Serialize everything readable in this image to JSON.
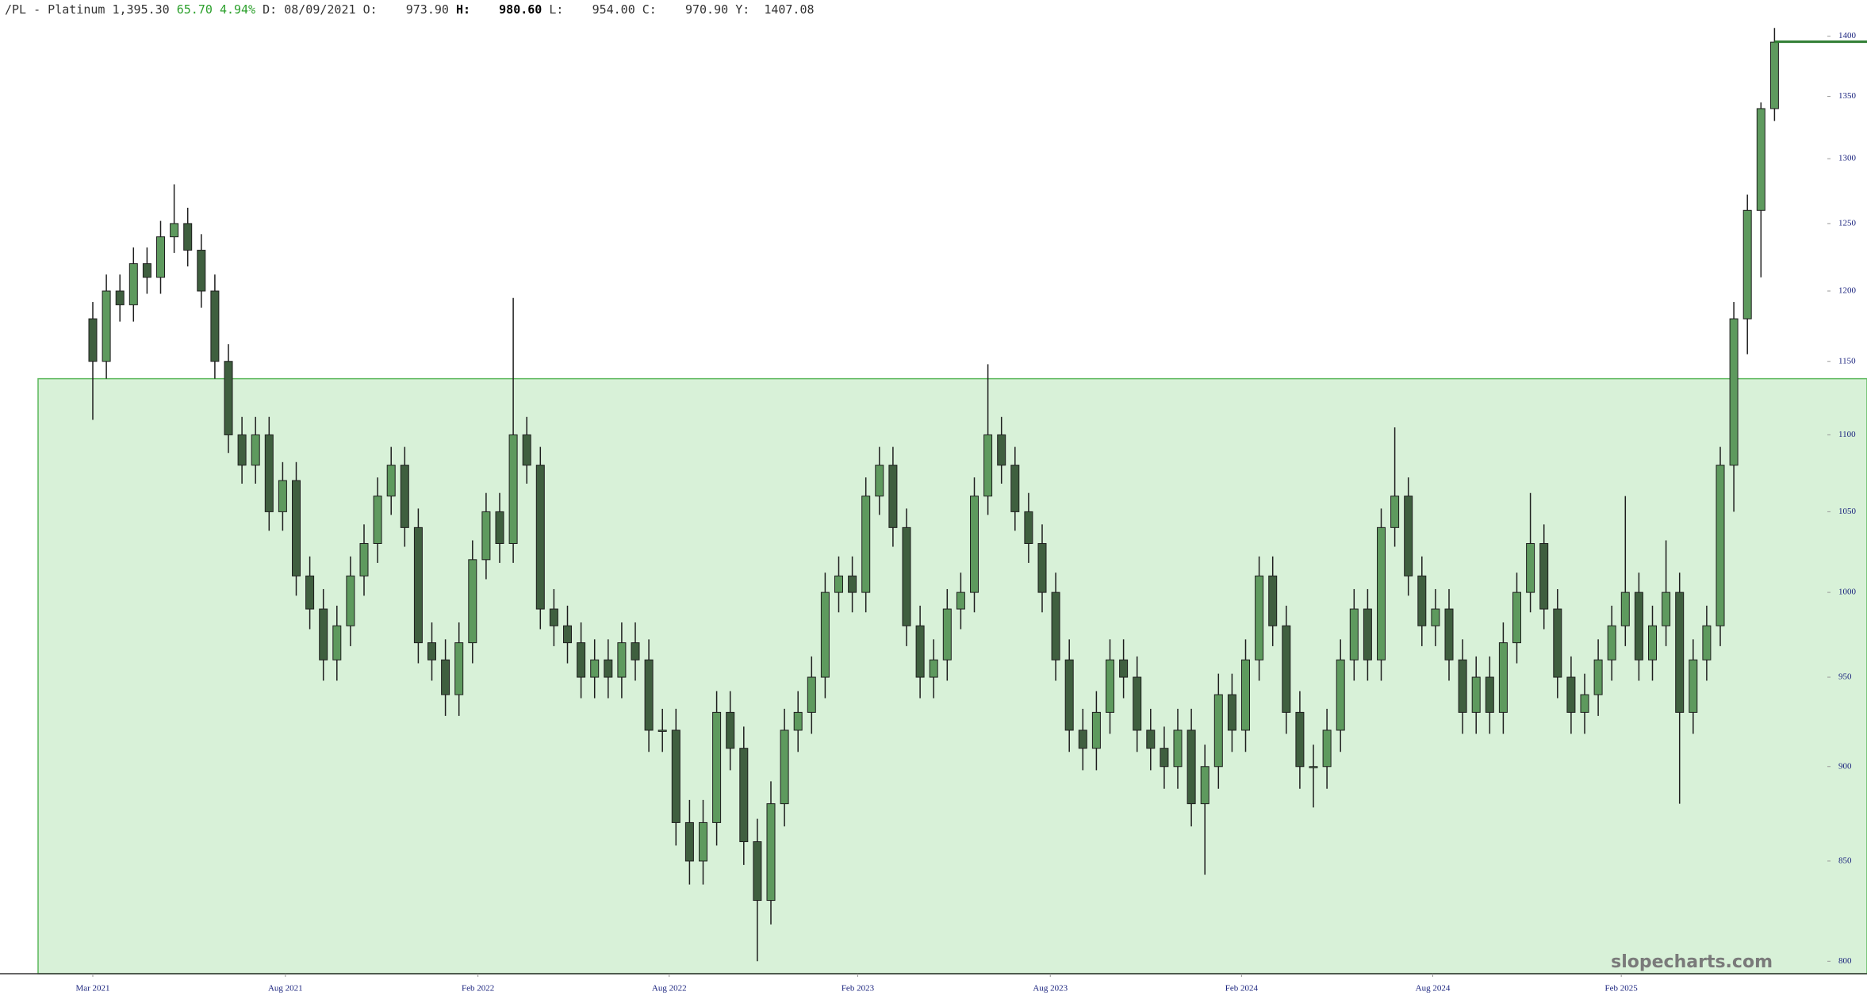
{
  "header": {
    "symbol": "/PL - Platinum",
    "last": "1,395.30",
    "change": "65.70",
    "change_pct": "4.94%",
    "fields": [
      {
        "label": "D:",
        "value": "08/09/2021"
      },
      {
        "label": "O:",
        "value": "973.90"
      },
      {
        "label": "H:",
        "value": "980.60"
      },
      {
        "label": "L:",
        "value": "954.00"
      },
      {
        "label": "C:",
        "value": "970.90"
      },
      {
        "label": "Y:",
        "value": "1407.08"
      }
    ]
  },
  "chart_data": {
    "type": "candlestick",
    "open": [
      1180,
      1150,
      1200,
      1190,
      1220,
      1210,
      1240,
      1250,
      1230,
      1200,
      1150,
      1100,
      1080,
      1100,
      1050,
      1070,
      1010,
      990,
      960,
      980,
      1010,
      1030,
      1060,
      1080,
      1040,
      970,
      960,
      940,
      970,
      1020,
      1050,
      1030,
      1100,
      1080,
      990,
      980,
      970,
      950,
      960,
      950,
      970,
      960,
      920,
      920,
      870,
      850,
      870,
      930,
      910,
      860,
      830,
      880,
      920,
      930,
      950,
      1000,
      1010,
      1000,
      1060,
      1080,
      1040,
      980,
      950,
      960,
      990,
      1000,
      1060,
      1100,
      1080,
      1050,
      1030,
      1000,
      960,
      920,
      910,
      930,
      960,
      950,
      920,
      910,
      900,
      920,
      880,
      900,
      940,
      920,
      960,
      1010,
      980,
      930,
      900,
      900,
      920,
      960,
      990,
      960,
      1040,
      1060,
      1010,
      980,
      990,
      960,
      930,
      950,
      930,
      970,
      1000,
      1030,
      990,
      950,
      930,
      940,
      960,
      980,
      1000,
      960,
      980,
      1000,
      930,
      960,
      980,
      1080,
      1180,
      1260,
      1340
    ],
    "high": [
      1192,
      1212,
      1212,
      1232,
      1232,
      1252,
      1280,
      1262,
      1242,
      1212,
      1162,
      1112,
      1112,
      1112,
      1082,
      1082,
      1022,
      1002,
      992,
      1022,
      1042,
      1072,
      1092,
      1092,
      1052,
      982,
      972,
      982,
      1032,
      1062,
      1062,
      1195,
      1112,
      1092,
      1002,
      992,
      982,
      972,
      972,
      982,
      982,
      972,
      932,
      932,
      882,
      882,
      942,
      942,
      922,
      872,
      892,
      932,
      942,
      962,
      1012,
      1022,
      1022,
      1072,
      1092,
      1092,
      1052,
      992,
      972,
      1002,
      1012,
      1072,
      1148,
      1112,
      1092,
      1062,
      1042,
      1012,
      972,
      932,
      942,
      972,
      972,
      962,
      932,
      922,
      932,
      932,
      912,
      952,
      952,
      972,
      1022,
      1022,
      992,
      942,
      912,
      932,
      972,
      1002,
      1002,
      1052,
      1105,
      1072,
      1022,
      1002,
      1002,
      972,
      962,
      962,
      982,
      1012,
      1062,
      1042,
      1002,
      962,
      952,
      972,
      992,
      1060,
      1012,
      992,
      1032,
      1012,
      972,
      992,
      1092,
      1192,
      1272,
      1345,
      1407
    ],
    "low": [
      1110,
      1138,
      1178,
      1178,
      1198,
      1198,
      1228,
      1218,
      1188,
      1138,
      1088,
      1068,
      1068,
      1038,
      1038,
      998,
      978,
      948,
      948,
      968,
      998,
      1018,
      1048,
      1028,
      958,
      948,
      928,
      928,
      958,
      1008,
      1018,
      1018,
      1068,
      978,
      968,
      958,
      938,
      938,
      938,
      938,
      948,
      908,
      908,
      858,
      838,
      838,
      858,
      898,
      848,
      800,
      818,
      868,
      908,
      918,
      938,
      988,
      988,
      988,
      1048,
      1028,
      968,
      938,
      938,
      948,
      978,
      988,
      1048,
      1068,
      1038,
      1018,
      988,
      948,
      908,
      898,
      898,
      918,
      938,
      908,
      898,
      888,
      888,
      868,
      843,
      888,
      908,
      908,
      948,
      968,
      918,
      888,
      878,
      888,
      908,
      948,
      948,
      948,
      1028,
      998,
      968,
      968,
      948,
      918,
      918,
      918,
      918,
      958,
      988,
      978,
      938,
      918,
      918,
      928,
      948,
      968,
      948,
      948,
      968,
      880,
      918,
      948,
      968,
      1050,
      1155,
      1210,
      1330
    ],
    "close": [
      1150,
      1200,
      1190,
      1220,
      1210,
      1240,
      1250,
      1230,
      1200,
      1150,
      1100,
      1080,
      1100,
      1050,
      1070,
      1010,
      990,
      960,
      980,
      1010,
      1030,
      1060,
      1080,
      1040,
      970,
      960,
      940,
      970,
      1020,
      1050,
      1030,
      1100,
      1080,
      990,
      980,
      970,
      950,
      960,
      950,
      970,
      960,
      920,
      920,
      870,
      850,
      870,
      930,
      910,
      860,
      830,
      880,
      920,
      930,
      950,
      1000,
      1010,
      1000,
      1060,
      1080,
      1040,
      980,
      950,
      960,
      990,
      1000,
      1060,
      1100,
      1080,
      1050,
      1030,
      1000,
      960,
      920,
      910,
      930,
      960,
      950,
      920,
      910,
      900,
      920,
      880,
      900,
      940,
      920,
      960,
      1010,
      980,
      930,
      900,
      900,
      920,
      960,
      990,
      960,
      1040,
      1060,
      1010,
      980,
      990,
      960,
      930,
      950,
      930,
      970,
      1000,
      1030,
      990,
      950,
      930,
      940,
      960,
      980,
      1000,
      960,
      980,
      1000,
      930,
      960,
      980,
      1080,
      1180,
      1260,
      1340,
      1395
    ],
    "up_color": "#5e9a5e",
    "down_color": "#3f5f3f",
    "wick_color": "#1e1e1e",
    "ylim": [
      794,
      1431
    ],
    "log_scale": true,
    "yticks": [
      800,
      850,
      900,
      950,
      1000,
      1050,
      1100,
      1150,
      1200,
      1250,
      1300,
      1350,
      1400
    ],
    "xticks": [
      {
        "value": 0,
        "label": "Mar 2021"
      },
      {
        "value": 14.2,
        "label": "Aug 2021"
      },
      {
        "value": 28.4,
        "label": "Feb 2022"
      },
      {
        "value": 42.5,
        "label": "Aug 2022"
      },
      {
        "value": 56.4,
        "label": "Feb 2023"
      },
      {
        "value": 70.6,
        "label": "Aug 2023"
      },
      {
        "value": 84.7,
        "label": "Feb 2024"
      },
      {
        "value": 98.8,
        "label": "Aug 2024"
      },
      {
        "value": 112.7,
        "label": "Feb 2025"
      }
    ],
    "shaded_band": {
      "from": 1138,
      "color": "#d8f1d8",
      "border": "#5cb85c"
    },
    "last_price_line": {
      "value": 1395.3,
      "color": "#2e7d32"
    },
    "watermark": "slopecharts.com"
  }
}
